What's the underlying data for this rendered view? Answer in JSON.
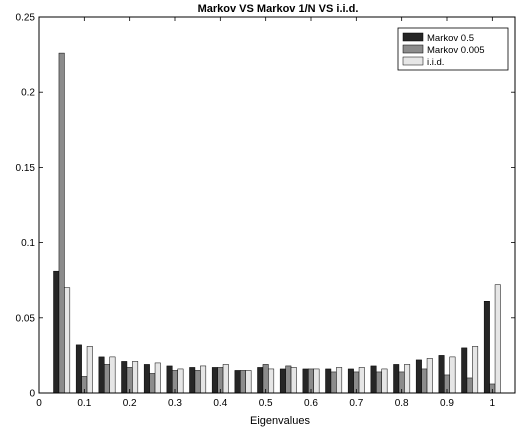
{
  "chart_data": {
    "type": "bar",
    "title": "Markov VS Markov 1/N VS i.i.d.",
    "xlabel": "Eigenvalues",
    "ylabel": "",
    "xlim": [
      0,
      1.05
    ],
    "ylim": [
      0,
      0.25
    ],
    "xticks": [
      "0",
      "0.1",
      "0.2",
      "0.3",
      "0.4",
      "0.5",
      "0.6",
      "0.7",
      "0.8",
      "0.9",
      "1"
    ],
    "yticks": [
      "0",
      "0.05",
      "0.1",
      "0.15",
      "0.2",
      "0.25"
    ],
    "legend_position": "top-right",
    "grid": false,
    "categories": [
      0.05,
      0.1,
      0.15,
      0.2,
      0.25,
      0.3,
      0.35,
      0.4,
      0.45,
      0.5,
      0.55,
      0.6,
      0.65,
      0.7,
      0.75,
      0.8,
      0.85,
      0.9,
      0.95,
      1.0
    ],
    "series": [
      {
        "name": "Markov 0.5",
        "color": "#262626",
        "values": [
          0.081,
          0.032,
          0.024,
          0.021,
          0.019,
          0.018,
          0.017,
          0.017,
          0.015,
          0.017,
          0.016,
          0.016,
          0.016,
          0.016,
          0.018,
          0.019,
          0.022,
          0.025,
          0.03,
          0.061
        ]
      },
      {
        "name": "Markov 0.005",
        "color": "#8c8c8c",
        "values": [
          0.226,
          0.011,
          0.019,
          0.017,
          0.013,
          0.015,
          0.015,
          0.017,
          0.015,
          0.019,
          0.018,
          0.016,
          0.014,
          0.014,
          0.014,
          0.014,
          0.016,
          0.012,
          0.01,
          0.006
        ]
      },
      {
        "name": "i.i.d.",
        "color": "#e6e6e6",
        "values": [
          0.07,
          0.031,
          0.024,
          0.021,
          0.02,
          0.016,
          0.018,
          0.019,
          0.015,
          0.016,
          0.017,
          0.016,
          0.017,
          0.017,
          0.016,
          0.019,
          0.023,
          0.024,
          0.031,
          0.072
        ]
      }
    ]
  }
}
